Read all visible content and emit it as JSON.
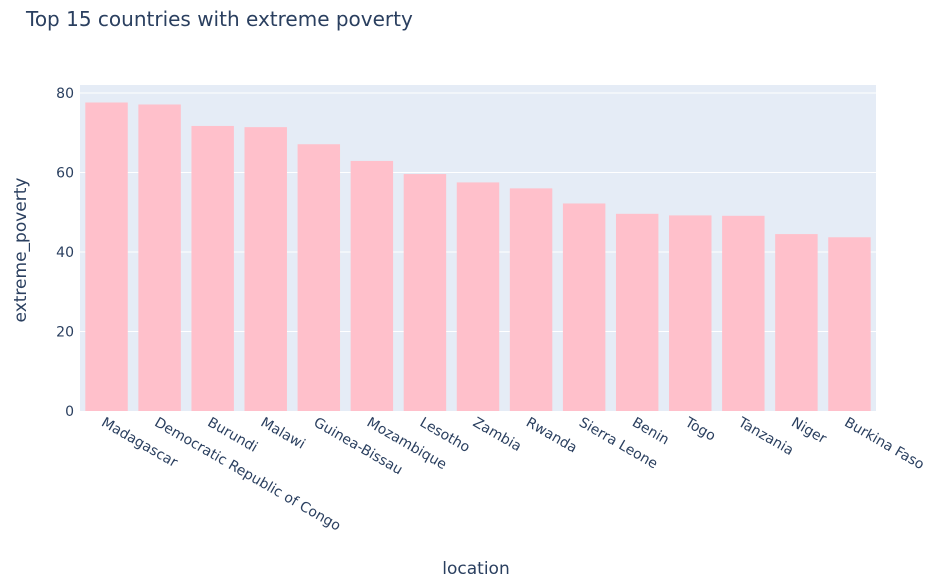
{
  "chart_data": {
    "type": "bar",
    "title": "Top 15 countries with extreme poverty",
    "xlabel": "location",
    "ylabel": "extreme_poverty",
    "categories": [
      "Madagascar",
      "Democratic Republic of Congo",
      "Burundi",
      "Malawi",
      "Guinea-Bissau",
      "Mozambique",
      "Lesotho",
      "Zambia",
      "Rwanda",
      "Sierra Leone",
      "Benin",
      "Togo",
      "Tanzania",
      "Niger",
      "Burkina Faso"
    ],
    "values": [
      77.6,
      77.1,
      71.7,
      71.4,
      67.1,
      62.9,
      59.6,
      57.5,
      56.0,
      52.2,
      49.6,
      49.2,
      49.1,
      44.5,
      43.7
    ],
    "ylim": [
      0,
      82
    ],
    "yticks": [
      0,
      20,
      40,
      60,
      80
    ],
    "grid": true,
    "bar_color": "#ffc0cb",
    "plot_bg": "#e5ecf6",
    "text_color": "#2a3f5f"
  }
}
